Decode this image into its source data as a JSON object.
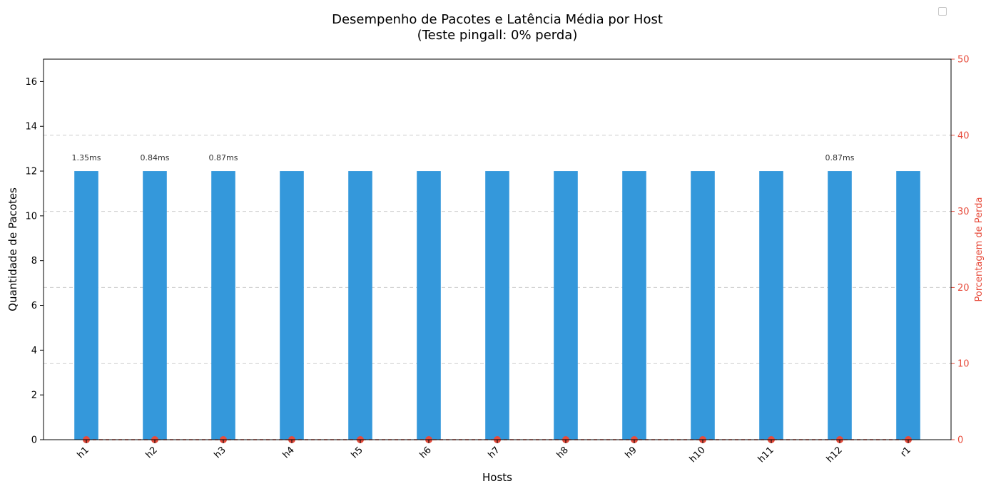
{
  "chart_data": {
    "type": "bar",
    "title": "Desempenho de Pacotes e Latência Média por Host",
    "subtitle": "(Teste pingall: 0% perda)",
    "xlabel": "Hosts",
    "ylabel": "Quantidade de Pacotes",
    "y2label": "Porcentagem de Perda",
    "categories": [
      "h1",
      "h2",
      "h3",
      "h4",
      "h5",
      "h6",
      "h7",
      "h8",
      "h9",
      "h10",
      "h11",
      "h12",
      "r1"
    ],
    "series": [
      {
        "type": "bar",
        "values": [
          12,
          12,
          12,
          12,
          12,
          12,
          12,
          12,
          12,
          12,
          12,
          12,
          12
        ],
        "color": "#3498db",
        "axis": "left"
      },
      {
        "type": "line",
        "values": [
          0,
          0,
          0,
          0,
          0,
          0,
          0,
          0,
          0,
          0,
          0,
          0,
          0
        ],
        "color": "#e74c3c",
        "style": "dashed",
        "marker": "circle",
        "axis": "right"
      }
    ],
    "data_labels": [
      "1.35ms",
      "0.84ms",
      "0.87ms",
      "",
      "",
      "",
      "",
      "",
      "",
      "",
      "",
      "0.87ms",
      ""
    ],
    "ylim": [
      0,
      17
    ],
    "yticks": [
      0,
      2,
      4,
      6,
      8,
      10,
      12,
      14,
      16
    ],
    "y2lim": [
      0,
      50
    ],
    "y2ticks": [
      0,
      10,
      20,
      30,
      40,
      50
    ],
    "grid": "horizontal dashed (right axis)",
    "legend": "top-right (empty)",
    "colors": {
      "bar": "#3498db",
      "loss": "#e74c3c",
      "grid": "#cccccc"
    }
  }
}
